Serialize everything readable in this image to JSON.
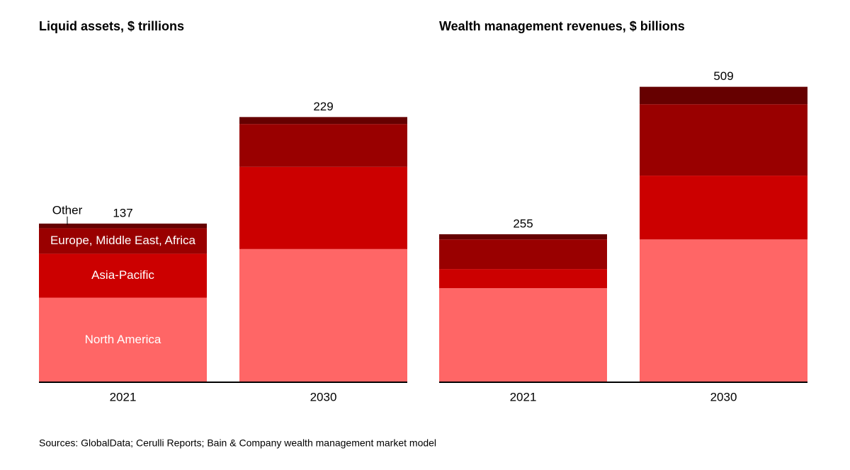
{
  "chart_data": [
    {
      "type": "stacked_bar",
      "title": "Liquid assets, $ trillions",
      "categories": [
        "2021",
        "2030"
      ],
      "series": [
        {
          "name": "North America",
          "color": "#ff6666",
          "values": [
            73,
            115
          ]
        },
        {
          "name": "Asia-Pacific",
          "color": "#cc0000",
          "values": [
            38,
            71
          ]
        },
        {
          "name": "Europe, Middle East, Africa",
          "color": "#990000",
          "values": [
            22,
            37
          ]
        },
        {
          "name": "Other",
          "color": "#660000",
          "values": [
            4,
            6
          ]
        }
      ],
      "totals": [
        137,
        229
      ],
      "ylim": [
        0,
        250
      ]
    },
    {
      "type": "stacked_bar",
      "title": "Wealth management revenues, $ billions",
      "categories": [
        "2021",
        "2030"
      ],
      "series": [
        {
          "color": "#ff6666",
          "values": [
            162,
            246
          ]
        },
        {
          "color": "#cc0000",
          "values": [
            33,
            110
          ]
        },
        {
          "color": "#990000",
          "values": [
            51,
            123
          ]
        },
        {
          "color": "#660000",
          "values": [
            9,
            30
          ]
        }
      ],
      "totals": [
        255,
        509
      ],
      "ylim": [
        0,
        600
      ]
    }
  ],
  "source": "Sources: GlobalData; Cerulli Reports; Bain & Company wealth management market model"
}
